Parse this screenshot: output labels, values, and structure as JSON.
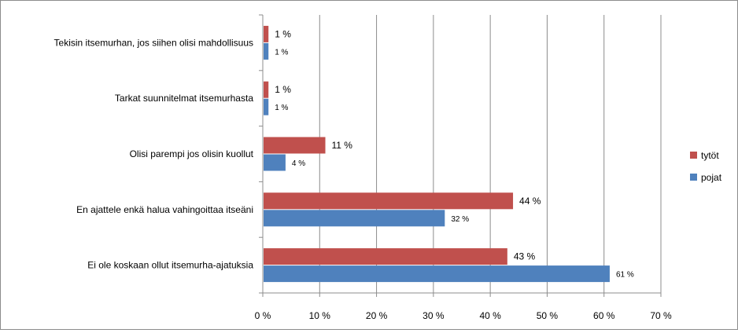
{
  "chart_data": {
    "type": "bar",
    "orientation": "horizontal",
    "categories": [
      "Tekisin itsemurhan, jos siihen olisi mahdollisuus",
      "Tarkat suunnitelmat itsemurhasta",
      "Olisi parempi jos olisin kuollut",
      "En ajattele enkä halua vahingoittaa itseäni",
      "Ei ole koskaan ollut itsemurha-ajatuksia"
    ],
    "series": [
      {
        "name": "tytöt",
        "color": "#c0504d",
        "values": [
          1,
          1,
          11,
          44,
          43
        ],
        "labels": [
          "1 %",
          "1 %",
          "11 %",
          "44 %",
          "43 %"
        ]
      },
      {
        "name": "pojat",
        "color": "#4f81bd",
        "values": [
          1,
          1,
          4,
          32,
          61
        ],
        "labels": [
          "1 %",
          "1 %",
          "4 %",
          "32 %",
          "61 %"
        ]
      }
    ],
    "xlim": [
      0,
      70
    ],
    "x_ticks": [
      "0 %",
      "10 %",
      "20 %",
      "30 %",
      "40 %",
      "50 %",
      "60 %",
      "70 %"
    ],
    "grid": true,
    "legend_position": "right"
  }
}
